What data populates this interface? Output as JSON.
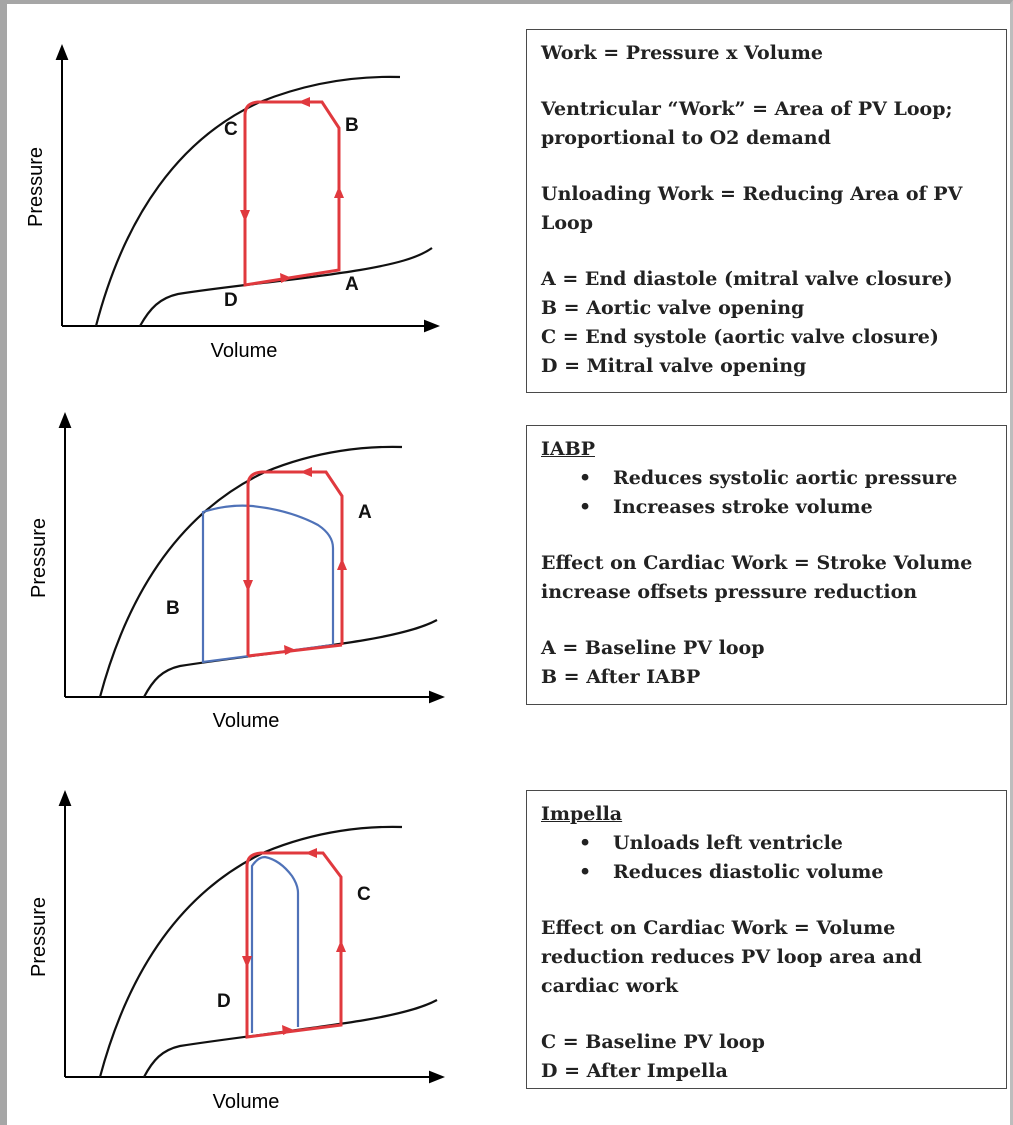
{
  "panels": [
    {
      "id": "baseline",
      "xlabel": "Volume",
      "ylabel": "Pressure",
      "points": [
        {
          "id": "A",
          "text": "A"
        },
        {
          "id": "B",
          "text": "B"
        },
        {
          "id": "C",
          "text": "C"
        },
        {
          "id": "D",
          "text": "D"
        }
      ],
      "loop_colors": {
        "baseline": "#e0393e"
      },
      "box": {
        "lines": [
          "Work = Pressure x Volume",
          "Ventricular “Work” = Area of PV Loop; proportional to O2 demand",
          "Unloading Work = Reducing Area of PV Loop",
          "A = End diastole (mitral valve closure)",
          "B = Aortic valve opening",
          "C = End systole (aortic valve closure)",
          "D = Mitral valve opening"
        ]
      }
    },
    {
      "id": "iabp",
      "xlabel": "Volume",
      "ylabel": "Pressure",
      "points": [
        {
          "id": "A",
          "text": "A"
        },
        {
          "id": "B",
          "text": "B"
        }
      ],
      "loop_colors": {
        "baseline": "#e0393e",
        "device": "#4f72b8"
      },
      "box": {
        "heading": "IABP",
        "bullets": [
          "Reduces systolic aortic pressure",
          "Increases stroke volume"
        ],
        "effect": "Effect on Cardiac Work = Stroke Volume increase offsets pressure reduction",
        "legend": [
          "A = Baseline PV loop",
          "B = After IABP"
        ]
      }
    },
    {
      "id": "impella",
      "xlabel": "Volume",
      "ylabel": "Pressure",
      "points": [
        {
          "id": "C",
          "text": "C"
        },
        {
          "id": "D",
          "text": "D"
        }
      ],
      "loop_colors": {
        "baseline": "#e0393e",
        "device": "#4f72b8"
      },
      "box": {
        "heading": "Impella",
        "bullets": [
          "Unloads left ventricle",
          "Reduces diastolic volume"
        ],
        "effect": "Effect on Cardiac Work = Volume reduction reduces PV loop area and cardiac work",
        "legend": [
          "C = Baseline PV loop",
          "D = After Impella"
        ]
      }
    }
  ]
}
